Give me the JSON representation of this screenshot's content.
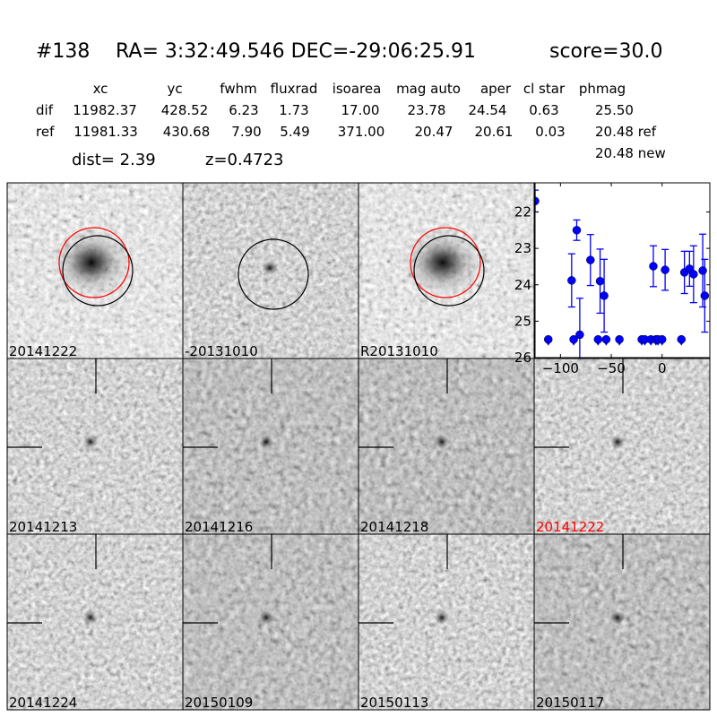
{
  "title": {
    "id": "#138",
    "coords": "RA= 3:32:49.546 DEC=-29:06:25.91",
    "score": "score=30.0"
  },
  "table": {
    "columns": [
      "xc",
      "yc",
      "fwhm",
      "fluxrad",
      "isoarea",
      "mag auto",
      "aper",
      "cl star",
      "phmag"
    ],
    "rows": [
      {
        "label": "dif",
        "values": [
          "11982.37",
          "428.52",
          "6.23",
          "1.73",
          "17.00",
          "23.78",
          "24.54",
          "0.63",
          "25.50"
        ]
      },
      {
        "label": "ref",
        "values": [
          "11981.33",
          "430.68",
          "7.90",
          "5.49",
          "371.00",
          "20.47",
          "20.61",
          "0.03",
          "20.48 ref"
        ]
      }
    ],
    "extra": "20.48 new"
  },
  "dist": "dist=  2.39",
  "z": "z=0.4723",
  "panels": [
    {
      "label": "20141222",
      "kind": "new",
      "highlight": false
    },
    {
      "label": "-20131010",
      "kind": "diff",
      "highlight": false
    },
    {
      "label": "R20131010",
      "kind": "ref",
      "highlight": false
    },
    {
      "label": "20141213",
      "kind": "epoch",
      "highlight": false
    },
    {
      "label": "20141216",
      "kind": "epoch",
      "highlight": false
    },
    {
      "label": "20141218",
      "kind": "epoch",
      "highlight": false
    },
    {
      "label": "20141222",
      "kind": "epoch",
      "highlight": true
    },
    {
      "label": "20141224",
      "kind": "epoch",
      "highlight": false
    },
    {
      "label": "20150109",
      "kind": "epoch",
      "highlight": false
    },
    {
      "label": "20150113",
      "kind": "epoch",
      "highlight": false
    },
    {
      "label": "20150117",
      "kind": "epoch",
      "highlight": false
    }
  ],
  "colors": {
    "highlight": "#ff0000",
    "points": "#0000ff",
    "circle_new": "#ff0000",
    "circle_ref": "#000000"
  },
  "chart_data": {
    "type": "scatter",
    "title": "",
    "xlabel": "",
    "ylabel": "",
    "xlim": [
      -125,
      47
    ],
    "ylim": [
      26,
      21.2
    ],
    "y_inverted": true,
    "xticks": [
      "-100",
      "-50",
      "0"
    ],
    "xtick_values": [
      -100,
      -50,
      0
    ],
    "yticks": [
      "22",
      "23",
      "24",
      "25",
      "26"
    ],
    "ytick_values": [
      22,
      23,
      24,
      25,
      26
    ],
    "grid": false,
    "detections": [
      {
        "x": -125,
        "y": 21.7,
        "err": 0.3
      },
      {
        "x": -89,
        "y": 23.88,
        "err": 0.73
      },
      {
        "x": -84,
        "y": 22.5,
        "err": 0.28
      },
      {
        "x": -81,
        "y": 25.37,
        "err": 1.0
      },
      {
        "x": -70.5,
        "y": 23.32,
        "err": 0.7
      },
      {
        "x": -61,
        "y": 23.9,
        "err": 0.88
      },
      {
        "x": -57,
        "y": 24.3,
        "err": 1.0
      },
      {
        "x": -8.6,
        "y": 23.49,
        "err": 0.56
      },
      {
        "x": 3,
        "y": 23.59,
        "err": 0.56
      },
      {
        "x": 22,
        "y": 23.66,
        "err": 0.58
      },
      {
        "x": 27,
        "y": 23.56,
        "err": 0.48
      },
      {
        "x": 31,
        "y": 23.71,
        "err": 0.78
      },
      {
        "x": 40,
        "y": 23.61,
        "err": 1.0
      },
      {
        "x": 42,
        "y": 24.3,
        "err": 1.0
      }
    ],
    "upper_limits": [
      {
        "x": -112,
        "y": 25.5
      },
      {
        "x": -87,
        "y": 25.5
      },
      {
        "x": -63,
        "y": 25.5
      },
      {
        "x": -55,
        "y": 25.5
      },
      {
        "x": -42,
        "y": 25.5
      },
      {
        "x": -20,
        "y": 25.5
      },
      {
        "x": -17,
        "y": 25.5
      },
      {
        "x": -11,
        "y": 25.5
      },
      {
        "x": -6,
        "y": 25.5
      },
      {
        "x": -4,
        "y": 25.5
      },
      {
        "x": 0,
        "y": 25.5
      },
      {
        "x": 19,
        "y": 25.5
      }
    ]
  }
}
